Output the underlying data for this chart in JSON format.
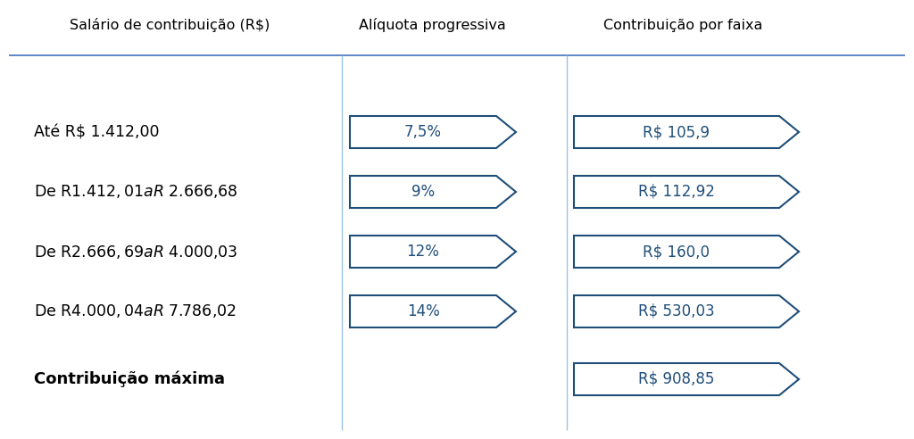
{
  "header_col1": "Salário de contribuição (R$)",
  "header_col2": "Alíquota progressiva",
  "header_col3": "Contribuição por faixa",
  "rows": [
    {
      "label": "Até R$ 1.412,00",
      "rate": "7,5%",
      "contribution": "R$ 105,9"
    },
    {
      "label": "De R$ 1.412,01 a R$ 2.666,68",
      "rate": "9%",
      "contribution": "R$ 112,92"
    },
    {
      "label": "De R$ 2.666,69 a R$ 4.000,03",
      "rate": "12%",
      "contribution": "R$ 160,0"
    },
    {
      "label": "De R$ 4.000,04 a R$ 7.786,02",
      "rate": "14%",
      "contribution": "R$ 530,03"
    }
  ],
  "footer_label": "Contribuição máxima",
  "footer_contribution": "R$ 908,85",
  "arrow_edge_color": "#1F4E79",
  "arrow_face_color": "#FFFFFF",
  "arrow_text_color": "#1F4E79",
  "header_line_color": "#4472C4",
  "col_divider_color": "#9DC3E6",
  "text_color": "#000000",
  "bg_color": "#FFFFFF",
  "header_fontsize": 11.5,
  "row_fontsize": 12.5,
  "arrow_fontsize": 12,
  "footer_fontsize": 13
}
